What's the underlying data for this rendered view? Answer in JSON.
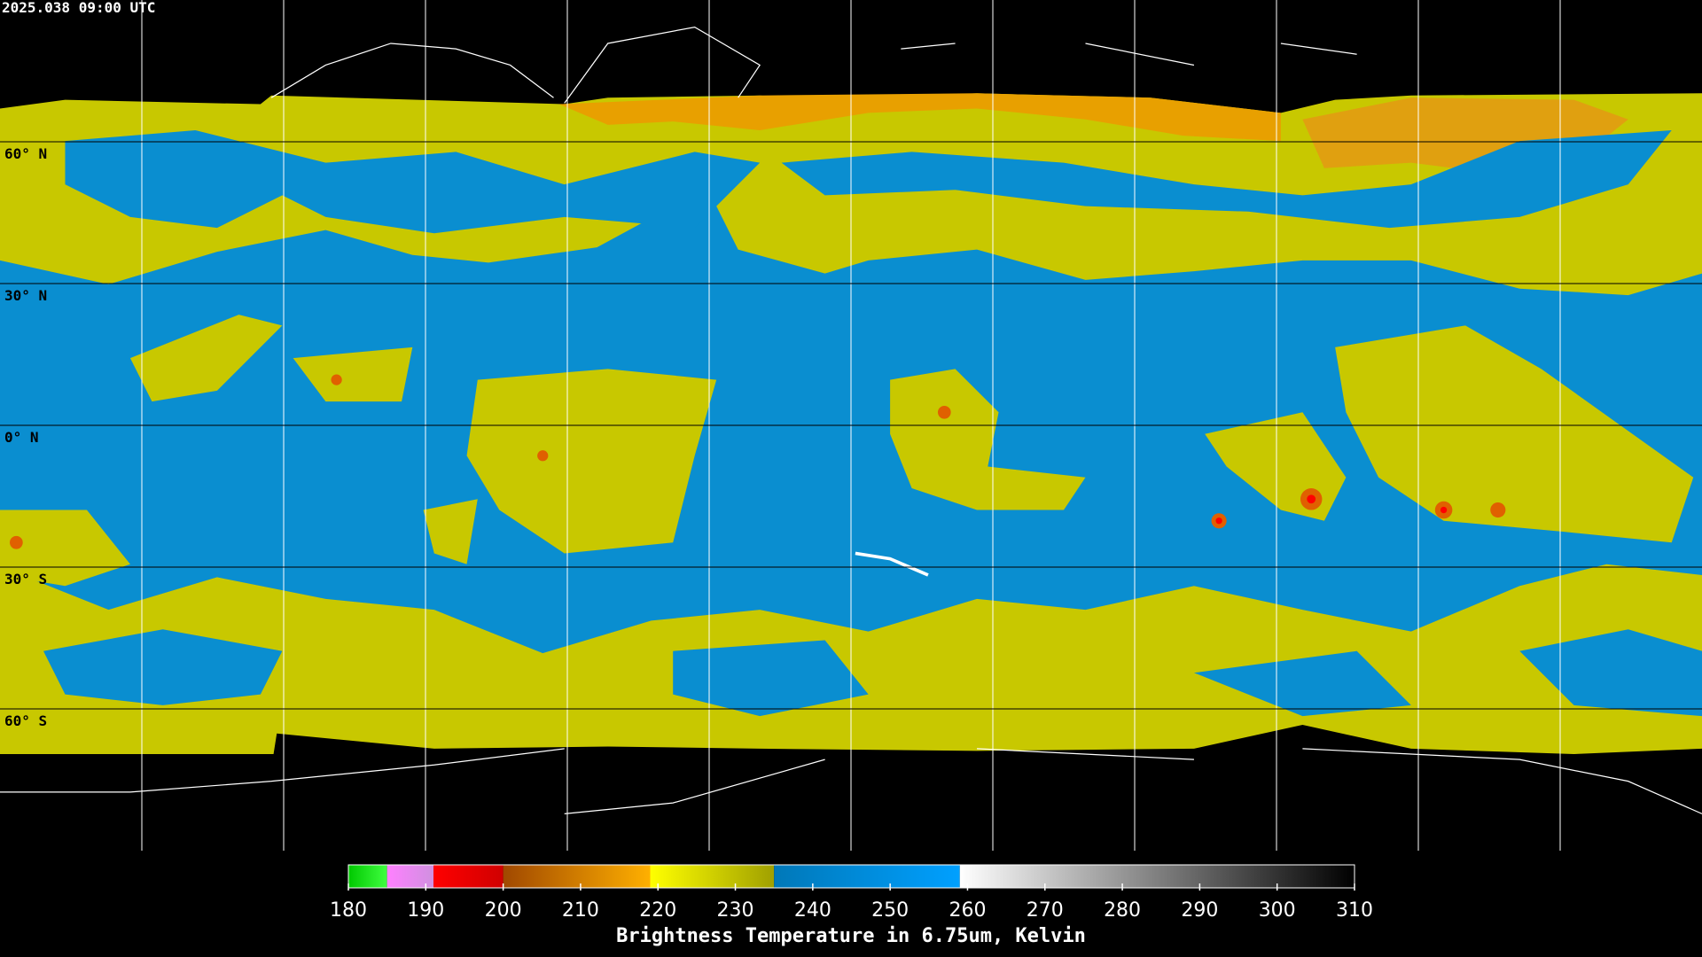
{
  "timestamp": "2025.038 09:00 UTC",
  "map": {
    "xlim": [
      -180,
      180
    ],
    "ylim": [
      -90,
      90
    ],
    "xticks": [
      -150,
      -120,
      -90,
      -60,
      -30,
      0,
      30,
      60,
      90,
      120,
      150
    ],
    "yticks": [
      {
        "value": 60,
        "label": "60° N"
      },
      {
        "value": 30,
        "label": "30° N"
      },
      {
        "value": 0,
        "label": "0° N"
      },
      {
        "value": -30,
        "label": "30° S"
      },
      {
        "value": -60,
        "label": "60° S"
      }
    ]
  },
  "colorbar": {
    "title": "Brightness Temperature in 6.75um, Kelvin",
    "range": [
      180,
      310
    ],
    "ticks": [
      180,
      190,
      200,
      210,
      220,
      230,
      240,
      250,
      260,
      270,
      280,
      290,
      300,
      310
    ],
    "segments": [
      {
        "from": 180,
        "to": 185,
        "colors": [
          "#00c800",
          "#40ff40"
        ]
      },
      {
        "from": 185,
        "to": 191,
        "colors": [
          "#ff80ff",
          "#d090e0"
        ]
      },
      {
        "from": 191,
        "to": 200,
        "colors": [
          "#ff0000",
          "#d00000"
        ]
      },
      {
        "from": 200,
        "to": 219,
        "colors": [
          "#a04800",
          "#ffb000"
        ]
      },
      {
        "from": 219,
        "to": 235,
        "colors": [
          "#ffff00",
          "#a0a000"
        ]
      },
      {
        "from": 235,
        "to": 259,
        "colors": [
          "#0078b8",
          "#00a0ff"
        ]
      },
      {
        "from": 259,
        "to": 310,
        "colors": [
          "#ffffff",
          "#000000"
        ]
      }
    ]
  }
}
